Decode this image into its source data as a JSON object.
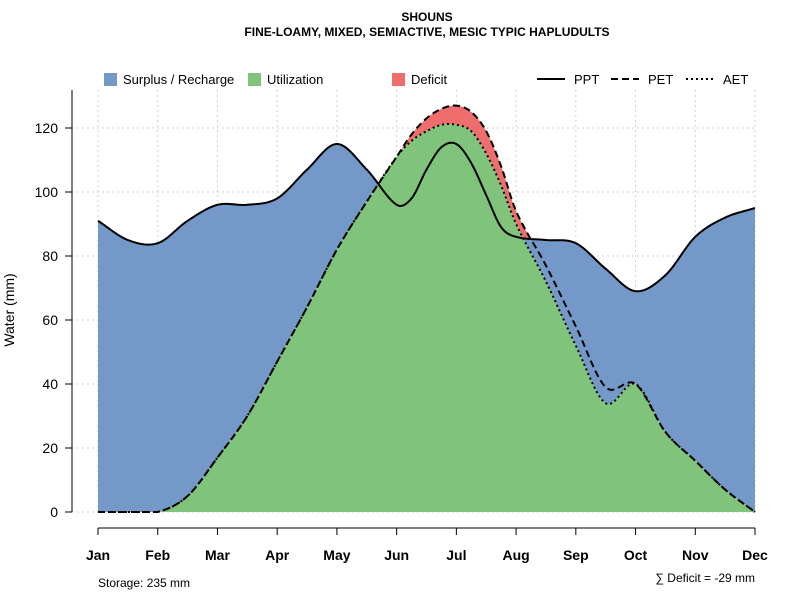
{
  "chart_data": {
    "type": "area",
    "title": "SHOUNS",
    "subtitle": "FINE-LOAMY, MIXED, SEMIACTIVE, MESIC TYPIC HAPLUDULTS",
    "ylabel": "Water (mm)",
    "ylim": [
      0,
      130
    ],
    "yticks": [
      0,
      20,
      40,
      60,
      80,
      100,
      120
    ],
    "grid": true,
    "categories": [
      "Jan",
      "Feb",
      "Mar",
      "Apr",
      "May",
      "Jun",
      "Jul",
      "Aug",
      "Sep",
      "Oct",
      "Nov",
      "Dec"
    ],
    "x": [
      1,
      1.5,
      2,
      2.5,
      3,
      3.5,
      4,
      4.5,
      5,
      5.5,
      6,
      6.25,
      6.5,
      6.75,
      7,
      7.25,
      7.5,
      7.75,
      8,
      8.5,
      9,
      9.5,
      10,
      10.5,
      11,
      11.5,
      12
    ],
    "series": [
      {
        "name": "PPT",
        "line": "solid",
        "values": [
          91,
          85,
          84,
          91,
          96,
          96,
          98,
          107,
          115,
          107,
          96,
          98,
          107,
          114,
          115,
          109,
          99,
          89,
          86,
          85,
          84,
          76,
          69,
          74,
          86,
          92,
          95
        ]
      },
      {
        "name": "PET",
        "line": "dashed",
        "values": [
          0,
          0,
          0,
          5,
          17,
          30,
          47,
          64,
          82,
          97,
          111,
          118,
          123,
          126,
          127,
          125,
          119,
          108,
          94,
          77,
          58,
          39,
          40,
          25,
          16,
          7,
          0
        ]
      },
      {
        "name": "AET",
        "line": "dotted",
        "values": [
          0,
          0,
          0,
          5,
          17,
          30,
          47,
          64,
          82,
          97,
          111,
          116,
          119,
          121,
          121,
          119,
          112,
          102,
          90,
          72,
          52,
          34,
          40,
          25,
          16,
          7,
          0
        ]
      }
    ],
    "legend": {
      "placement": "top",
      "fills": [
        {
          "name": "Surplus / Recharge",
          "color": "#7499C9"
        },
        {
          "name": "Utilization",
          "color": "#7FC47A"
        },
        {
          "name": "Deficit",
          "color": "#EE6D6D"
        }
      ],
      "lines": [
        {
          "name": "PPT",
          "style": "solid"
        },
        {
          "name": "PET",
          "style": "dashed"
        },
        {
          "name": "AET",
          "style": "dotted"
        }
      ]
    },
    "annotations": {
      "storage": "Storage: 235 mm",
      "deficit": "∑ Deficit = -29 mm"
    }
  }
}
